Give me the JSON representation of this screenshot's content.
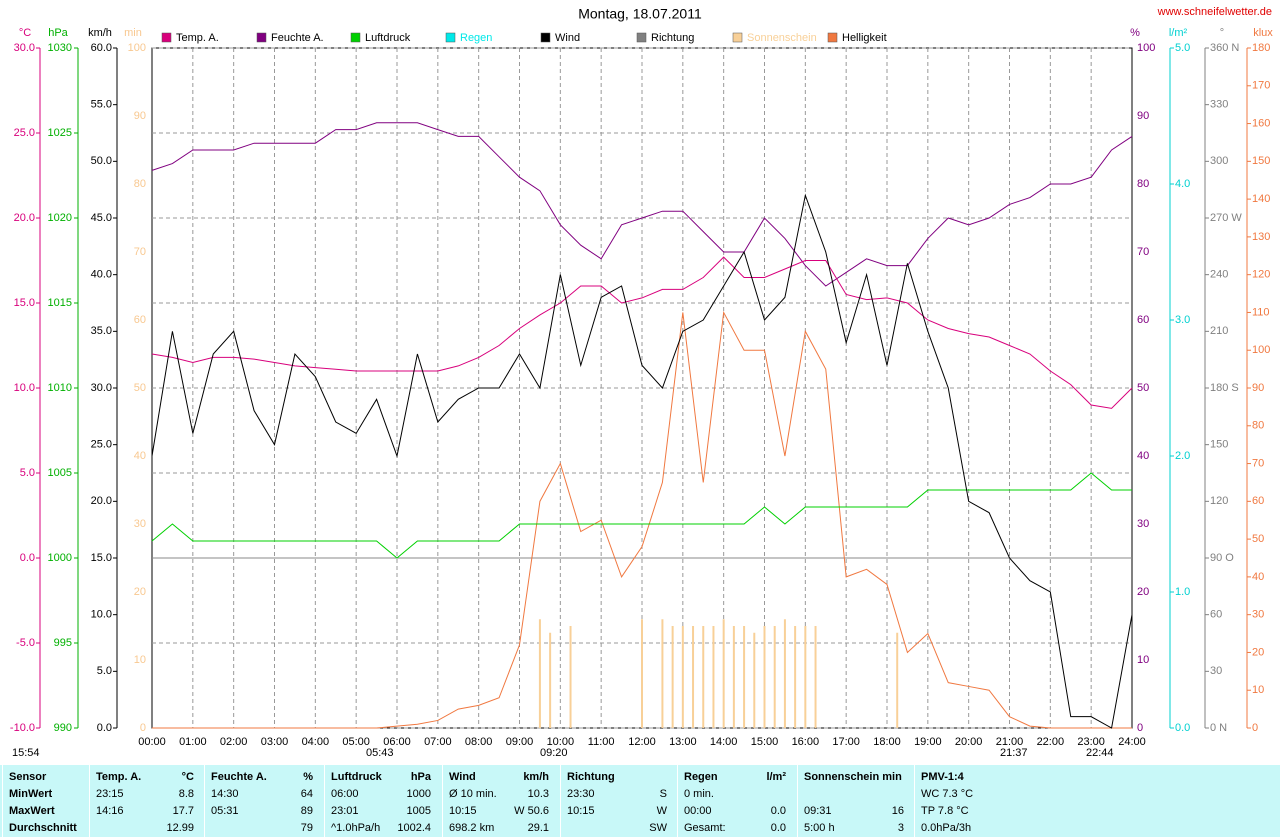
{
  "header": {
    "site": "www.schneifelwetter.de"
  },
  "chart_data": {
    "type": "line",
    "title": "Montag, 18.07.2011",
    "grid": true,
    "legend": [
      {
        "name": "Temp. A.",
        "color": "#d8007c"
      },
      {
        "name": "Feuchte A.",
        "color": "#800080"
      },
      {
        "name": "Luftdruck",
        "color": "#00d000"
      },
      {
        "name": "Regen",
        "color": "#00e8e8"
      },
      {
        "name": "Wind",
        "color": "#000000"
      },
      {
        "name": "Richtung",
        "color": "#808080"
      },
      {
        "name": "Sonnenschein",
        "color": "#f8d098"
      },
      {
        "name": "Helligkeit",
        "color": "#f07840"
      }
    ],
    "axes": [
      {
        "unit": "°C",
        "color": "#d8007c",
        "lim": [
          -10,
          30
        ],
        "ticks": [
          {
            "value": -10,
            "label": "-10.0"
          },
          {
            "value": -5,
            "label": "-5.0"
          },
          {
            "value": 0,
            "label": "0.0"
          },
          {
            "value": 5,
            "label": "5.0"
          },
          {
            "value": 10,
            "label": "10.0"
          },
          {
            "value": 15,
            "label": "15.0"
          },
          {
            "value": 20,
            "label": "20.0"
          },
          {
            "value": 25,
            "label": "25.0"
          },
          {
            "value": 30,
            "label": "30.0"
          }
        ]
      },
      {
        "unit": "hPa",
        "color": "#00b000",
        "lim": [
          990,
          1030
        ],
        "ticks": [
          990,
          995,
          1000,
          1005,
          1010,
          1015,
          1020,
          1025,
          1030
        ]
      },
      {
        "unit": "km/h",
        "color": "#000000",
        "lim": [
          0,
          60
        ],
        "ticks": [
          {
            "value": 0,
            "label": "0.0"
          },
          {
            "value": 5,
            "label": "5.0"
          },
          {
            "value": 10,
            "label": "10.0"
          },
          {
            "value": 15,
            "label": "15.0"
          },
          {
            "value": 20,
            "label": "20.0"
          },
          {
            "value": 25,
            "label": "25.0"
          },
          {
            "value": 30,
            "label": "30.0"
          },
          {
            "value": 35,
            "label": "35.0"
          },
          {
            "value": 40,
            "label": "40.0"
          },
          {
            "value": 45,
            "label": "45.0"
          },
          {
            "value": 50,
            "label": "50.0"
          },
          {
            "value": 55,
            "label": "55.0"
          },
          {
            "value": 60,
            "label": "60.0"
          }
        ]
      },
      {
        "unit": "min",
        "color": "#f8c890",
        "lim": [
          0,
          100
        ],
        "ticks": [
          0,
          10,
          20,
          30,
          40,
          50,
          60,
          70,
          80,
          90,
          100
        ]
      },
      {
        "unit": "%",
        "color": "#800080",
        "lim": [
          0,
          100
        ],
        "ticks": [
          0,
          10,
          20,
          30,
          40,
          50,
          60,
          70,
          80,
          90,
          100
        ]
      },
      {
        "unit": "l/m²",
        "color": "#00d0d0",
        "lim": [
          0,
          5
        ],
        "ticks": [
          {
            "value": 0,
            "label": "0.0"
          },
          {
            "value": 1,
            "label": "1.0"
          },
          {
            "value": 2,
            "label": "2.0"
          },
          {
            "value": 3,
            "label": "3.0"
          },
          {
            "value": 4,
            "label": "4.0"
          },
          {
            "value": 5,
            "label": "5.0"
          }
        ]
      },
      {
        "unit": "°",
        "color": "#808080",
        "lim": [
          0,
          360
        ],
        "ticks": [
          {
            "value": 0,
            "label": "0 N"
          },
          30,
          60,
          {
            "value": 90,
            "label": "90 O"
          },
          120,
          150,
          {
            "value": 180,
            "label": "180 S"
          },
          210,
          240,
          {
            "value": 270,
            "label": "270 W"
          },
          300,
          330,
          {
            "value": 360,
            "label": "360 N"
          }
        ]
      },
      {
        "unit": "klux",
        "color": "#f07840",
        "lim": [
          0,
          180
        ],
        "ticks": [
          0,
          10,
          20,
          30,
          40,
          50,
          60,
          70,
          80,
          90,
          100,
          110,
          120,
          130,
          140,
          150,
          160,
          170,
          180
        ]
      }
    ],
    "xlim": [
      0,
      24
    ],
    "xticks": [
      {
        "value": 0,
        "label": "00:00"
      },
      {
        "value": 1,
        "label": "01:00"
      },
      {
        "value": 2,
        "label": "02:00"
      },
      {
        "value": 3,
        "label": "03:00"
      },
      {
        "value": 4,
        "label": "04:00"
      },
      {
        "value": 5,
        "label": "05:00"
      },
      {
        "value": 6,
        "label": "06:00"
      },
      {
        "value": 7,
        "label": "07:00"
      },
      {
        "value": 8,
        "label": "08:00"
      },
      {
        "value": 9,
        "label": "09:00"
      },
      {
        "value": 10,
        "label": "10:00"
      },
      {
        "value": 11,
        "label": "11:00"
      },
      {
        "value": 12,
        "label": "12:00"
      },
      {
        "value": 13,
        "label": "13:00"
      },
      {
        "value": 14,
        "label": "14:00"
      },
      {
        "value": 15,
        "label": "15:00"
      },
      {
        "value": 16,
        "label": "16:00"
      },
      {
        "value": 17,
        "label": "17:00"
      },
      {
        "value": 18,
        "label": "18:00"
      },
      {
        "value": 19,
        "label": "19:00"
      },
      {
        "value": 20,
        "label": "20:00"
      },
      {
        "value": 21,
        "label": "21:00"
      },
      {
        "value": 22,
        "label": "22:00"
      },
      {
        "value": 23,
        "label": "23:00"
      },
      {
        "value": 24,
        "label": "24:00"
      }
    ],
    "x": [
      0,
      0.5,
      1,
      1.5,
      2,
      2.5,
      3,
      3.5,
      4,
      4.5,
      5,
      5.5,
      6,
      6.5,
      7,
      7.5,
      8,
      8.5,
      9,
      9.5,
      10,
      10.5,
      11,
      11.5,
      12,
      12.5,
      13,
      13.5,
      14,
      14.5,
      15,
      15.5,
      16,
      16.5,
      17,
      17.5,
      18,
      18.5,
      19,
      19.5,
      20,
      20.5,
      21,
      21.5,
      22,
      22.5,
      23,
      23.5,
      24
    ],
    "series": [
      {
        "name": "Helligkeit",
        "color": "#f07840",
        "axis": 7,
        "values": [
          0,
          0,
          0,
          0,
          0,
          0,
          0,
          0,
          0,
          0,
          0,
          0,
          0.5,
          1,
          2,
          5,
          6,
          8,
          22,
          60,
          70,
          52,
          55,
          40,
          48,
          65,
          110,
          65,
          110,
          100,
          100,
          72,
          105,
          95,
          40,
          42,
          38,
          20,
          25,
          12,
          11,
          10,
          3,
          0.5,
          0,
          0,
          0,
          0,
          0
        ]
      },
      {
        "name": "Luftdruck",
        "color": "#00d000",
        "axis": 1,
        "values": [
          1001,
          1002,
          1001,
          1001,
          1001,
          1001,
          1001,
          1001,
          1001,
          1001,
          1001,
          1001,
          1000,
          1001,
          1001,
          1001,
          1001,
          1001,
          1002,
          1002,
          1002,
          1002,
          1002,
          1002,
          1002,
          1002,
          1002,
          1002,
          1002,
          1002,
          1003,
          1002,
          1003,
          1003,
          1003,
          1003,
          1003,
          1003,
          1004,
          1004,
          1004,
          1004,
          1004,
          1004,
          1004,
          1004,
          1005,
          1004,
          1004
        ]
      },
      {
        "name": "Feuchte A.",
        "color": "#800080",
        "axis": 4,
        "values": [
          82,
          83,
          85,
          85,
          85,
          86,
          86,
          86,
          86,
          88,
          88,
          89,
          89,
          89,
          88,
          87,
          87,
          84,
          81,
          79,
          74,
          71,
          69,
          74,
          75,
          76,
          76,
          73,
          70,
          70,
          75,
          72,
          68,
          65,
          67,
          69,
          68,
          68,
          72,
          75,
          74,
          75,
          77,
          78,
          80,
          80,
          81,
          85,
          87
        ]
      },
      {
        "name": "Temp. A.",
        "color": "#d8007c",
        "axis": 0,
        "values": [
          12,
          11.8,
          11.5,
          11.8,
          11.8,
          11.7,
          11.5,
          11.3,
          11.2,
          11.1,
          11,
          11,
          11,
          11,
          11,
          11.3,
          11.8,
          12.5,
          13.5,
          14.3,
          15,
          16,
          16,
          15,
          15.3,
          15.8,
          15.8,
          16.5,
          17.7,
          16.5,
          16.5,
          17,
          17.5,
          17.5,
          15.5,
          15.2,
          15.3,
          15,
          14,
          13.5,
          13.2,
          13,
          12.5,
          12,
          11,
          10.2,
          9,
          8.8,
          10
        ]
      },
      {
        "name": "Wind",
        "color": "#000000",
        "axis": 2,
        "values": [
          24,
          35,
          26,
          33,
          35,
          28,
          25,
          33,
          31,
          27,
          26,
          29,
          24,
          33,
          27,
          29,
          30,
          30,
          33,
          30,
          40,
          32,
          38,
          39,
          32,
          30,
          35,
          36,
          39,
          42,
          36,
          38,
          47,
          42,
          34,
          40,
          32,
          41,
          35,
          30,
          20,
          19,
          15,
          13,
          12,
          1,
          1,
          0,
          10
        ]
      }
    ],
    "bars": {
      "name": "Sonnenschein",
      "color": "#f8d098",
      "axis": 3,
      "x": [
        9.5,
        9.75,
        10.25,
        12,
        12.5,
        12.75,
        13,
        13.25,
        13.5,
        13.75,
        14,
        14.25,
        14.5,
        14.75,
        15,
        15.25,
        15.5,
        15.75,
        16,
        16.25,
        18.25
      ],
      "values": [
        16,
        14,
        15,
        16,
        16,
        15,
        15,
        15,
        15,
        15,
        16,
        15,
        15,
        14,
        15,
        15,
        16,
        15,
        15,
        15,
        14
      ]
    },
    "annotations": [
      "15:54",
      "05:43",
      "09:20",
      "21:37",
      "22:44"
    ]
  },
  "table": {
    "sections": [
      {
        "header": [
          "Sensor"
        ],
        "rows": [
          [
            "MinWert"
          ],
          [
            "MaxWert"
          ],
          [
            "Durchschnitt"
          ]
        ]
      },
      {
        "header": [
          "Temp. A.",
          "°C"
        ],
        "rows": [
          [
            "23:15",
            "8.8"
          ],
          [
            "14:16",
            "17.7"
          ],
          [
            null,
            "12.99"
          ]
        ]
      },
      {
        "header": [
          "Feuchte A.",
          "%"
        ],
        "rows": [
          [
            "14:30",
            "64"
          ],
          [
            "05:31",
            "89"
          ],
          [
            null,
            "79"
          ]
        ]
      },
      {
        "header": [
          "Luftdruck",
          "hPa"
        ],
        "rows": [
          [
            "06:00",
            "1000"
          ],
          [
            "23:01",
            "1005"
          ],
          [
            "^1.0hPa/h",
            "1002.4"
          ]
        ]
      },
      {
        "header": [
          "Wind",
          "km/h"
        ],
        "rows": [
          [
            "Ø 10 min.",
            "10.3"
          ],
          [
            "10:15",
            "W 50.6"
          ],
          [
            "698.2 km",
            "29.1"
          ]
        ]
      },
      {
        "header": [
          "Richtung"
        ],
        "rows": [
          [
            "23:30",
            "S"
          ],
          [
            "10:15",
            "W"
          ],
          [
            null,
            "SW"
          ]
        ]
      },
      {
        "header": [
          "Regen",
          "l/m²"
        ],
        "rows": [
          [
            "0 min.",
            null
          ],
          [
            "00:00",
            "0.0"
          ],
          [
            "Gesamt:",
            "0.0"
          ]
        ]
      },
      {
        "header": [
          "Sonnenschein min"
        ],
        "rows": [
          [
            null,
            null
          ],
          [
            "09:31",
            "16"
          ],
          [
            "5:00 h",
            "3"
          ]
        ]
      },
      {
        "header": [
          "PMV-1:4"
        ],
        "rows": [
          [
            "WC 7.3 °C"
          ],
          [
            "TP 7.8 °C"
          ],
          [
            "0.0hPa/3h"
          ]
        ]
      }
    ]
  }
}
